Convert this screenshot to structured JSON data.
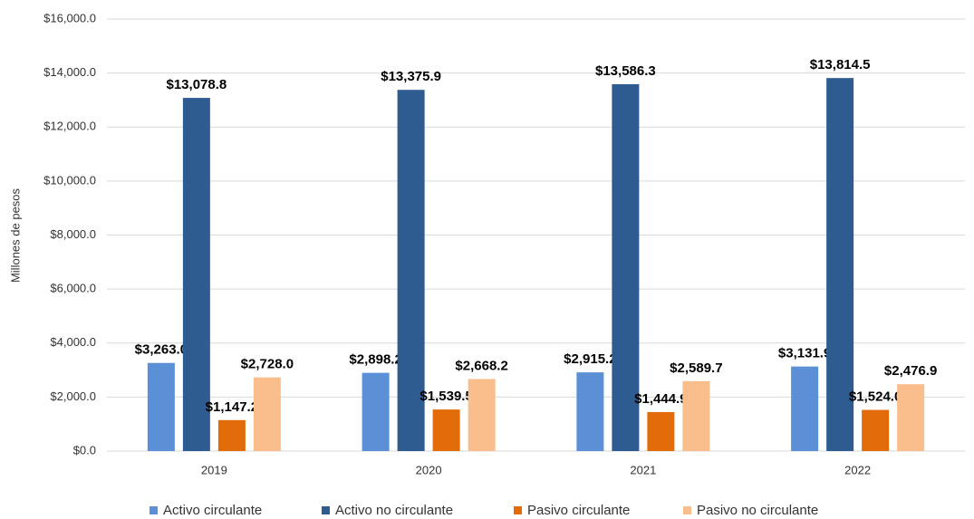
{
  "chart_data": {
    "type": "bar",
    "y_label": "Millones de pesos",
    "categories": [
      "2019",
      "2020",
      "2021",
      "2022"
    ],
    "series": [
      {
        "name": "Activo circulante",
        "color": "#5b8fd6",
        "values": [
          3263.0,
          2898.2,
          2915.2,
          3131.9
        ],
        "value_labels": [
          "$3,263.0",
          "$2,898.2",
          "$2,915.2",
          "$3,131.9"
        ]
      },
      {
        "name": "Activo no circulante",
        "color": "#2e5c91",
        "values": [
          13078.8,
          13375.9,
          13586.3,
          13814.5
        ],
        "value_labels": [
          "$13,078.8",
          "$13,375.9",
          "$13,586.3",
          "$13,814.5"
        ]
      },
      {
        "name": "Pasivo circulante",
        "color": "#e36c0a",
        "values": [
          1147.2,
          1539.5,
          1444.9,
          1524.0
        ],
        "value_labels": [
          "$1,147.2",
          "$1,539.5",
          "$1,444.9",
          "$1,524.0"
        ]
      },
      {
        "name": "Pasivo no circulante",
        "color": "#f9be8c",
        "values": [
          2728.0,
          2668.2,
          2589.7,
          2476.9
        ],
        "value_labels": [
          "$2,728.0",
          "$2,668.2",
          "$2,589.7",
          "$2,476.9"
        ]
      }
    ],
    "ylim": [
      0,
      16000
    ],
    "yticks": [
      {
        "value": 0,
        "label": "$0.0"
      },
      {
        "value": 2000,
        "label": "$2,000.0"
      },
      {
        "value": 4000,
        "label": "$4,000.0"
      },
      {
        "value": 6000,
        "label": "$6,000.0"
      },
      {
        "value": 8000,
        "label": "$8,000.0"
      },
      {
        "value": 10000,
        "label": "$10,000.0"
      },
      {
        "value": 12000,
        "label": "$12,000.0"
      },
      {
        "value": 14000,
        "label": "$14,000.0"
      },
      {
        "value": 16000,
        "label": "$16,000.0"
      }
    ],
    "grid": true,
    "legend": "bottom"
  }
}
